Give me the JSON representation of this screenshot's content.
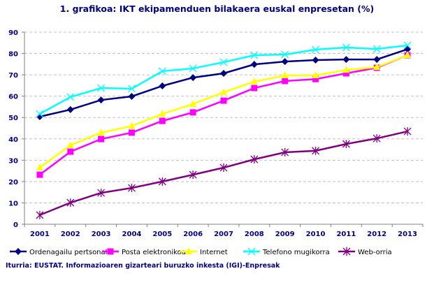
{
  "chart_data": {
    "type": "line",
    "title": "1. grafikoa: IKT ekipamenduen bilakaera euskal enpresetan (%)",
    "xlabel": "",
    "ylabel": "",
    "categories": [
      "2001",
      "2002",
      "2003",
      "2004",
      "2005",
      "2006",
      "2007",
      "2008",
      "2009",
      "2010",
      "2011",
      "2012",
      "2013"
    ],
    "ylim": [
      0,
      90
    ],
    "yticks": [
      0,
      10,
      20,
      30,
      40,
      50,
      60,
      70,
      80,
      90
    ],
    "grid": true,
    "legend": "bottom",
    "series": [
      {
        "name": "Ordenagailu pertsonala",
        "color": "#000080",
        "marker": "diamond",
        "values": [
          50.4,
          53.7,
          58.2,
          59.9,
          64.8,
          68.7,
          70.7,
          74.9,
          76.2,
          76.9,
          77.2,
          77.2,
          82.0
        ]
      },
      {
        "name": "Posta elektronikoa",
        "color": "#FF00FF",
        "marker": "square",
        "values": [
          23.2,
          34.0,
          39.9,
          42.9,
          48.4,
          52.4,
          57.9,
          63.8,
          67.1,
          68.0,
          70.7,
          73.3,
          79.2
        ]
      },
      {
        "name": "Internet",
        "color": "#FFFF00",
        "marker": "triangle",
        "values": [
          26.5,
          37.0,
          42.9,
          46.0,
          51.7,
          56.3,
          61.8,
          66.8,
          69.7,
          69.7,
          72.3,
          73.6,
          79.2
        ]
      },
      {
        "name": "Telefono mugikorra",
        "color": "#00FFFF",
        "marker": "x",
        "values": [
          51.7,
          59.6,
          63.8,
          63.5,
          71.7,
          73.0,
          75.9,
          79.2,
          79.5,
          81.8,
          82.8,
          82.1,
          83.8
        ]
      },
      {
        "name": "Web-orria",
        "color": "#800080",
        "marker": "star",
        "values": [
          4.3,
          10.1,
          14.7,
          17.0,
          20.0,
          23.2,
          26.5,
          30.4,
          33.7,
          34.4,
          37.6,
          40.2,
          43.5
        ]
      }
    ]
  },
  "source": "Iturria: EUSTAT. Informazioaren gizarteari buruzko inkesta (IGI)-Enpresak"
}
